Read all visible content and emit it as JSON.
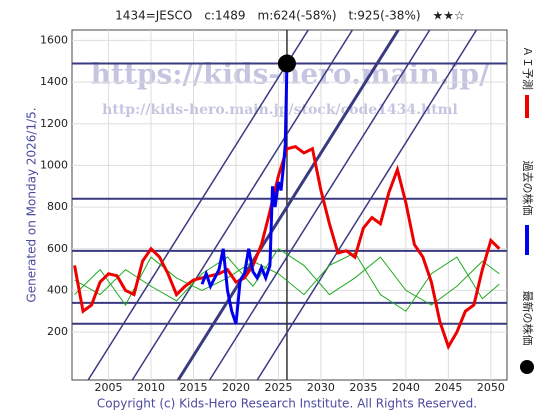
{
  "chart_data": {
    "type": "line",
    "title": "1434=JESCO　c:1489　m:624(-58%)　t:925(-38%)　★★☆",
    "subtitle": "Generated on Monday 2026/1/5.",
    "footer": "Copyright (c) Kids-Hero Research Institute. All Rights Reserved.",
    "watermarks": [
      "https://kids-hero.main.jp/",
      "http://kids-hero.main.jp/stock/code1434.html"
    ],
    "xlim": [
      2000.7,
      2051.9
    ],
    "ylim": [
      -30,
      1650
    ],
    "xticks": [
      2005,
      2010,
      2015,
      2020,
      2025,
      2030,
      2035,
      2040,
      2045,
      2050
    ],
    "yticks": [
      200,
      400,
      600,
      800,
      1000,
      1200,
      1400,
      1600
    ],
    "hlines": [
      1489,
      840,
      590,
      340,
      240
    ],
    "vline": 2026,
    "trend_lines": [
      {
        "x": [
          2002.6,
          2028.5
        ],
        "y": [
          -30,
          1650
        ]
      },
      {
        "x": [
          2007.8,
          2033.7
        ],
        "y": [
          -30,
          1650
        ]
      },
      {
        "x": [
          2013.2,
          2039.1
        ],
        "y": [
          -30,
          1650
        ]
      },
      {
        "x": [
          2016.9,
          2042.8
        ],
        "y": [
          -30,
          1650
        ]
      },
      {
        "x": [
          2022.5,
          2048.3
        ],
        "y": [
          -30,
          1650
        ]
      }
    ],
    "series": [
      {
        "name": null,
        "color": "#22aa22",
        "x": [
          2001,
          2004,
          2007,
          2010,
          2013,
          2016,
          2019,
          2022,
          2025,
          2028,
          2031,
          2034,
          2037,
          2040,
          2043,
          2046,
          2049,
          2051
        ],
        "values": [
          450,
          380,
          500,
          420,
          350,
          480,
          560,
          420,
          600,
          520,
          380,
          460,
          560,
          400,
          330,
          420,
          540,
          480
        ]
      },
      {
        "name": null,
        "color": "#22aa22",
        "x": [
          2001,
          2004,
          2007,
          2010,
          2013,
          2016,
          2019,
          2022,
          2025,
          2028,
          2031,
          2034,
          2037,
          2040,
          2043,
          2046,
          2049,
          2051
        ],
        "values": [
          380,
          500,
          330,
          560,
          460,
          400,
          460,
          540,
          480,
          380,
          520,
          580,
          380,
          300,
          480,
          560,
          360,
          430
        ]
      },
      {
        "name": "ＡＩ予測",
        "color": "#ee0000",
        "x": [
          2001,
          2002,
          2003,
          2004,
          2005,
          2006,
          2007,
          2008,
          2009,
          2010,
          2011,
          2012,
          2013,
          2014,
          2015,
          2016,
          2017,
          2018,
          2019,
          2020,
          2021,
          2022,
          2023,
          2024,
          2025,
          2026,
          2027,
          2028,
          2029,
          2030,
          2031,
          2032,
          2033,
          2034,
          2035,
          2036,
          2037,
          2038,
          2039,
          2040,
          2041,
          2042,
          2043,
          2044,
          2045,
          2046,
          2047,
          2048,
          2049,
          2050,
          2051
        ],
        "values": [
          520,
          300,
          330,
          440,
          480,
          470,
          400,
          380,
          540,
          600,
          560,
          480,
          380,
          420,
          450,
          460,
          470,
          480,
          500,
          440,
          460,
          520,
          620,
          780,
          950,
          1080,
          1090,
          1060,
          1080,
          880,
          720,
          580,
          590,
          560,
          700,
          750,
          720,
          870,
          980,
          820,
          620,
          560,
          440,
          250,
          130,
          200,
          300,
          330,
          500,
          640,
          600
        ]
      },
      {
        "name": "過去の株価",
        "color": "#0000ee",
        "x": [
          2016,
          2016.5,
          2017,
          2017.5,
          2018,
          2018.5,
          2019,
          2019.5,
          2020,
          2020.5,
          2021,
          2021.5,
          2022,
          2022.5,
          2023,
          2023.5,
          2024,
          2024.3,
          2024.6,
          2025,
          2025.3,
          2025.6,
          2025.8,
          2026
        ],
        "values": [
          430,
          480,
          420,
          460,
          500,
          600,
          400,
          300,
          240,
          450,
          480,
          600,
          490,
          460,
          510,
          460,
          520,
          900,
          800,
          920,
          880,
          1000,
          1100,
          1489
        ]
      }
    ],
    "latest": {
      "name": "最新の株価",
      "x": 2026,
      "value": 1489
    }
  }
}
